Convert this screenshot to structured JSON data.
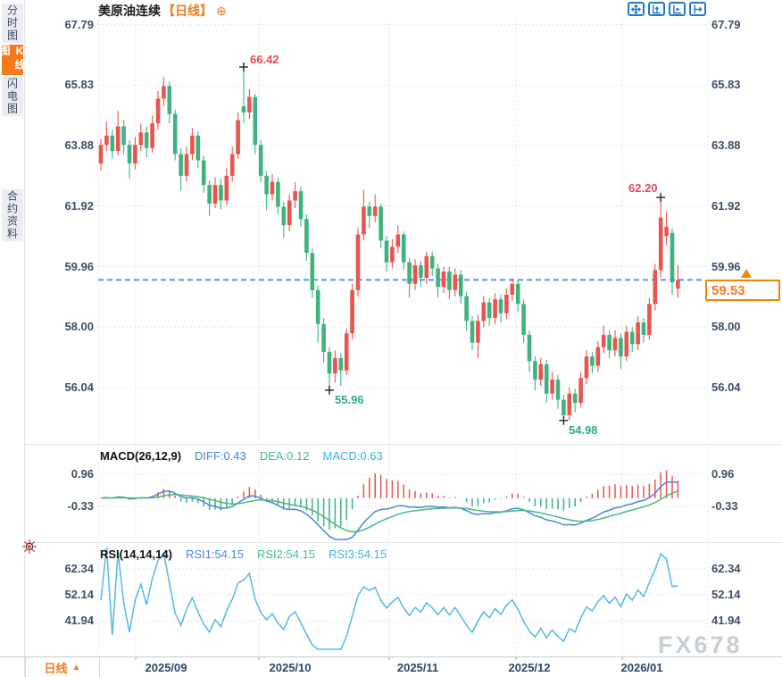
{
  "sidebar": {
    "items": [
      {
        "label": "分时图",
        "active": false
      },
      {
        "label": "K线图",
        "active": true
      },
      {
        "label": "闪电图",
        "active": false
      },
      {
        "label": "合约资料",
        "active": false
      }
    ]
  },
  "header": {
    "title": "美原油连续",
    "period_tag": "【日线】",
    "expand_icon": "⊕"
  },
  "toolbar": {
    "icons": [
      "pan-icon",
      "fit-vertical-icon",
      "fit-horizontal-icon",
      "go-latest-icon"
    ]
  },
  "macd_header": {
    "name": "MACD(26,12,9)",
    "diff": "DIFF:0.43",
    "dea": "DEA:0.12",
    "macd": "MACD:0.63"
  },
  "rsi_header": {
    "name": "RSI(14,14,14)",
    "rsi1": "RSI1:54.15",
    "rsi2": "RSI2:54.15",
    "rsi3": "RSI3:54.15"
  },
  "bottom_bar": {
    "period_label": "日线",
    "period_arrow": "▲"
  },
  "watermark": "FX678",
  "price_marker": {
    "label": "59.53",
    "value": 59.53
  },
  "colors": {
    "up": "#e8544e",
    "down": "#3fb27e",
    "accent_orange": "#f57a1c",
    "dashed_line": "#3e8ddd",
    "diff_line": "#4a86d8",
    "dea_line": "#49b97c",
    "rsi_line": "#56b7e6",
    "grid": "#d8dce3",
    "high_label": "#e8475a",
    "low_label": "#2fae78"
  },
  "chart_data": [
    {
      "type": "candlestick",
      "title": "美原油连续 日线",
      "yticks": [
        67.79,
        65.83,
        63.88,
        61.92,
        59.96,
        58.0,
        56.04
      ],
      "x_tick_labels": [
        "2025/09",
        "2025/10",
        "2025/11",
        "2025/12",
        "2026/01"
      ],
      "ylim": [
        54.4,
        68.3
      ],
      "last_close": 59.53,
      "annotations": [
        {
          "label": "66.42",
          "index": 25,
          "price": 66.42,
          "placement": "above",
          "kind": "high"
        },
        {
          "label": "55.96",
          "index": 40,
          "price": 55.96,
          "placement": "below",
          "kind": "low"
        },
        {
          "label": "54.98",
          "index": 81,
          "price": 54.98,
          "placement": "below",
          "kind": "low"
        },
        {
          "label": "62.20",
          "index": 98,
          "price": 62.2,
          "placement": "above-left",
          "kind": "high"
        }
      ],
      "ohlc": [
        [
          63.3,
          64.1,
          63.05,
          63.9
        ],
        [
          63.9,
          64.65,
          63.7,
          64.2
        ],
        [
          64.2,
          64.4,
          63.45,
          63.7
        ],
        [
          63.7,
          65.0,
          63.55,
          64.5
        ],
        [
          64.5,
          64.7,
          63.6,
          63.9
        ],
        [
          63.9,
          64.05,
          62.8,
          63.3
        ],
        [
          63.3,
          64.15,
          63.1,
          63.9
        ],
        [
          63.9,
          64.6,
          63.7,
          64.3
        ],
        [
          64.3,
          64.5,
          63.5,
          63.8
        ],
        [
          63.8,
          64.85,
          63.65,
          64.6
        ],
        [
          64.6,
          65.65,
          64.4,
          65.4
        ],
        [
          65.4,
          66.1,
          65.15,
          65.8
        ],
        [
          65.8,
          65.95,
          64.6,
          64.9
        ],
        [
          64.9,
          65.05,
          63.4,
          63.6
        ],
        [
          63.6,
          63.8,
          62.4,
          62.9
        ],
        [
          62.9,
          63.85,
          62.7,
          63.6
        ],
        [
          63.6,
          64.45,
          63.4,
          64.2
        ],
        [
          64.2,
          64.35,
          63.15,
          63.4
        ],
        [
          63.4,
          63.55,
          62.35,
          62.6
        ],
        [
          62.6,
          62.75,
          61.6,
          62.0
        ],
        [
          62.0,
          62.85,
          61.85,
          62.6
        ],
        [
          62.6,
          62.8,
          61.8,
          62.1
        ],
        [
          62.1,
          63.15,
          61.95,
          62.9
        ],
        [
          62.9,
          63.85,
          62.7,
          63.6
        ],
        [
          63.6,
          64.95,
          63.45,
          64.7
        ],
        [
          65.15,
          66.42,
          64.6,
          64.95
        ],
        [
          64.95,
          65.7,
          64.75,
          65.45
        ],
        [
          65.45,
          65.55,
          63.6,
          63.9
        ],
        [
          63.9,
          64.05,
          62.7,
          62.9
        ],
        [
          62.9,
          63.05,
          61.8,
          62.3
        ],
        [
          62.3,
          62.95,
          62.1,
          62.7
        ],
        [
          62.7,
          62.85,
          61.65,
          61.9
        ],
        [
          61.9,
          62.05,
          60.9,
          61.3
        ],
        [
          61.3,
          62.3,
          61.1,
          62.1
        ],
        [
          62.1,
          62.7,
          61.85,
          62.4
        ],
        [
          62.4,
          62.55,
          61.25,
          61.5
        ],
        [
          61.5,
          61.65,
          60.15,
          60.4
        ],
        [
          60.4,
          60.55,
          58.95,
          59.2
        ],
        [
          59.2,
          59.35,
          57.5,
          58.1
        ],
        [
          58.1,
          58.3,
          56.85,
          57.2
        ],
        [
          57.2,
          57.35,
          55.96,
          56.5
        ],
        [
          56.5,
          57.25,
          56.2,
          57.0
        ],
        [
          57.0,
          57.15,
          56.1,
          56.6
        ],
        [
          56.6,
          57.95,
          56.45,
          57.8
        ],
        [
          57.8,
          59.4,
          57.6,
          59.2
        ],
        [
          59.2,
          61.2,
          59.0,
          61.0
        ],
        [
          61.0,
          62.45,
          60.8,
          61.9
        ],
        [
          61.9,
          62.05,
          61.2,
          61.6
        ],
        [
          61.6,
          62.3,
          61.4,
          61.9
        ],
        [
          61.9,
          62.0,
          60.55,
          60.8
        ],
        [
          60.8,
          60.95,
          59.8,
          60.1
        ],
        [
          60.1,
          60.85,
          59.9,
          60.6
        ],
        [
          60.6,
          61.3,
          60.4,
          61.0
        ],
        [
          61.0,
          61.1,
          59.85,
          60.1
        ],
        [
          60.1,
          60.25,
          58.95,
          59.4
        ],
        [
          59.4,
          60.2,
          59.2,
          60.0
        ],
        [
          60.0,
          60.15,
          59.3,
          59.6
        ],
        [
          59.6,
          60.45,
          59.4,
          60.3
        ],
        [
          60.3,
          60.45,
          59.65,
          59.9
        ],
        [
          59.9,
          60.05,
          58.95,
          59.3
        ],
        [
          59.3,
          59.95,
          59.1,
          59.8
        ],
        [
          59.8,
          59.95,
          58.9,
          59.2
        ],
        [
          59.2,
          59.9,
          59.0,
          59.7
        ],
        [
          59.7,
          59.85,
          58.75,
          59.0
        ],
        [
          59.0,
          59.15,
          57.9,
          58.2
        ],
        [
          58.2,
          58.35,
          57.25,
          57.5
        ],
        [
          57.5,
          58.4,
          57.0,
          58.2
        ],
        [
          58.2,
          59.0,
          58.0,
          58.8
        ],
        [
          58.8,
          58.95,
          58.05,
          58.3
        ],
        [
          58.3,
          59.1,
          58.1,
          58.9
        ],
        [
          58.9,
          59.05,
          58.15,
          58.45
        ],
        [
          58.45,
          59.25,
          58.25,
          59.05
        ],
        [
          59.05,
          59.6,
          58.85,
          59.4
        ],
        [
          59.4,
          59.55,
          58.5,
          58.75
        ],
        [
          58.75,
          58.9,
          57.5,
          57.75
        ],
        [
          57.75,
          57.9,
          56.55,
          56.9
        ],
        [
          56.9,
          57.05,
          55.95,
          56.3
        ],
        [
          56.3,
          57.0,
          56.1,
          56.8
        ],
        [
          56.8,
          56.95,
          55.55,
          55.85
        ],
        [
          55.85,
          56.55,
          55.65,
          56.3
        ],
        [
          56.3,
          56.45,
          55.35,
          55.65
        ],
        [
          55.65,
          55.8,
          54.98,
          55.15
        ],
        [
          55.15,
          56.05,
          55.0,
          55.85
        ],
        [
          55.85,
          56.0,
          55.25,
          55.55
        ],
        [
          55.55,
          56.55,
          55.4,
          56.35
        ],
        [
          56.35,
          57.25,
          56.15,
          57.05
        ],
        [
          57.05,
          57.2,
          56.5,
          56.75
        ],
        [
          56.75,
          57.55,
          56.55,
          57.35
        ],
        [
          57.35,
          58.05,
          57.15,
          57.75
        ],
        [
          57.75,
          57.9,
          57.0,
          57.25
        ],
        [
          57.25,
          57.9,
          57.05,
          57.65
        ],
        [
          57.65,
          57.8,
          56.65,
          57.05
        ],
        [
          57.05,
          58.05,
          56.9,
          57.85
        ],
        [
          57.85,
          58.0,
          57.2,
          57.45
        ],
        [
          57.45,
          58.35,
          57.25,
          58.15
        ],
        [
          58.15,
          58.3,
          57.5,
          57.75
        ],
        [
          57.75,
          58.95,
          57.6,
          58.75
        ],
        [
          58.75,
          60.05,
          58.55,
          59.85
        ],
        [
          59.85,
          62.2,
          59.6,
          61.55
        ],
        [
          60.95,
          61.75,
          60.65,
          61.25
        ],
        [
          61.05,
          61.2,
          59.05,
          59.45
        ],
        [
          59.25,
          60.0,
          58.95,
          59.53
        ]
      ]
    },
    {
      "type": "macd",
      "params": [
        26,
        12,
        9
      ],
      "diff": 0.43,
      "dea": 0.12,
      "macd": 0.63,
      "yticks": [
        0.96,
        -0.33
      ],
      "note": "histogram = 2*(DIFF-DEA), computed from candlestick closes"
    },
    {
      "type": "rsi",
      "params": [
        14,
        14,
        14
      ],
      "rsi1": 54.15,
      "rsi2": 54.15,
      "rsi3": 54.15,
      "yticks": [
        62.34,
        52.14,
        41.94
      ],
      "note": "RSI(14) line computed from candlestick closes; three lines identical"
    }
  ]
}
